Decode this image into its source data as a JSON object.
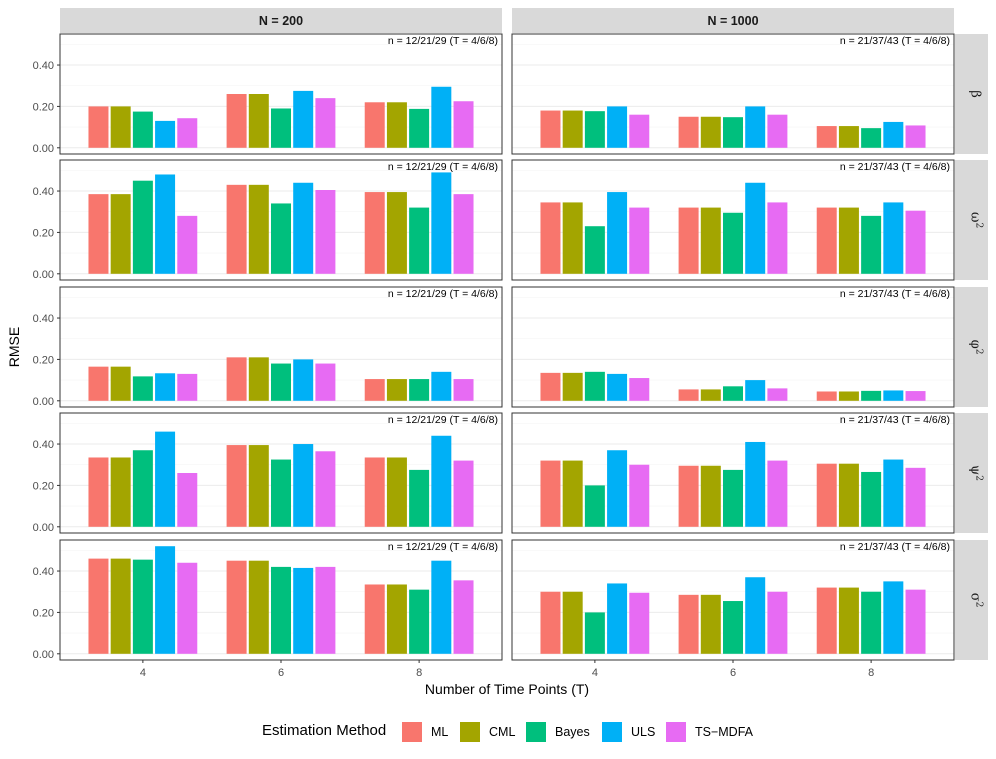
{
  "chart_data": {
    "type": "bar",
    "xlabel": "Number of Time Points (T)",
    "ylabel": "RMSE",
    "ylim": [
      -0.03,
      0.55
    ],
    "yticks": [
      "0.00",
      "0.20",
      "0.40"
    ],
    "ytick_values": [
      0,
      0.2,
      0.4
    ],
    "categories": [
      "4",
      "6",
      "8"
    ],
    "column_facets": [
      "N = 200",
      "N = 1000"
    ],
    "row_facets": [
      {
        "symbol": "β",
        "sup": ""
      },
      {
        "symbol": "ω",
        "sup": "2"
      },
      {
        "symbol": "φ",
        "sup": "2"
      },
      {
        "symbol": "ψ",
        "sup": "2"
      },
      {
        "symbol": "σ",
        "sup": "2"
      }
    ],
    "panel_annotations": [
      "n = 12/21/29 (T = 4/6/8)",
      "n = 21/37/43 (T = 4/6/8)"
    ],
    "series_names": [
      "ML",
      "CML",
      "Bayes",
      "ULS",
      "TS−MDFA"
    ],
    "series_colors": [
      "#F8766D",
      "#A3A500",
      "#00BF7D",
      "#00B0F6",
      "#E76BF3"
    ],
    "legend_title": "Estimation Method",
    "values": [
      [
        [
          [
            0.2,
            0.2,
            0.175,
            0.13,
            0.143
          ],
          [
            0.26,
            0.26,
            0.19,
            0.275,
            0.24
          ],
          [
            0.22,
            0.22,
            0.188,
            0.295,
            0.225
          ]
        ],
        [
          [
            0.18,
            0.18,
            0.177,
            0.2,
            0.16
          ],
          [
            0.15,
            0.15,
            0.148,
            0.2,
            0.16
          ],
          [
            0.105,
            0.105,
            0.095,
            0.125,
            0.108
          ]
        ]
      ],
      [
        [
          [
            0.385,
            0.385,
            0.45,
            0.48,
            0.28
          ],
          [
            0.43,
            0.43,
            0.34,
            0.44,
            0.405
          ],
          [
            0.395,
            0.395,
            0.32,
            0.49,
            0.385
          ]
        ],
        [
          [
            0.345,
            0.345,
            0.23,
            0.395,
            0.32
          ],
          [
            0.32,
            0.32,
            0.295,
            0.44,
            0.345
          ],
          [
            0.32,
            0.32,
            0.28,
            0.345,
            0.305
          ]
        ]
      ],
      [
        [
          [
            0.165,
            0.165,
            0.118,
            0.133,
            0.13
          ],
          [
            0.21,
            0.21,
            0.18,
            0.2,
            0.18
          ],
          [
            0.105,
            0.105,
            0.105,
            0.14,
            0.105
          ]
        ],
        [
          [
            0.135,
            0.135,
            0.14,
            0.13,
            0.11
          ],
          [
            0.055,
            0.055,
            0.07,
            0.1,
            0.06
          ],
          [
            0.045,
            0.045,
            0.048,
            0.05,
            0.047
          ]
        ]
      ],
      [
        [
          [
            0.335,
            0.335,
            0.37,
            0.46,
            0.26
          ],
          [
            0.395,
            0.395,
            0.325,
            0.4,
            0.365
          ],
          [
            0.335,
            0.335,
            0.275,
            0.44,
            0.32
          ]
        ],
        [
          [
            0.32,
            0.32,
            0.2,
            0.37,
            0.3
          ],
          [
            0.295,
            0.295,
            0.275,
            0.41,
            0.32
          ],
          [
            0.305,
            0.305,
            0.265,
            0.325,
            0.285
          ]
        ]
      ],
      [
        [
          [
            0.46,
            0.46,
            0.455,
            0.52,
            0.44
          ],
          [
            0.45,
            0.45,
            0.42,
            0.415,
            0.42
          ],
          [
            0.335,
            0.335,
            0.31,
            0.45,
            0.355
          ]
        ],
        [
          [
            0.3,
            0.3,
            0.2,
            0.34,
            0.295
          ],
          [
            0.285,
            0.285,
            0.255,
            0.37,
            0.3
          ],
          [
            0.32,
            0.32,
            0.3,
            0.35,
            0.31
          ]
        ]
      ]
    ]
  }
}
